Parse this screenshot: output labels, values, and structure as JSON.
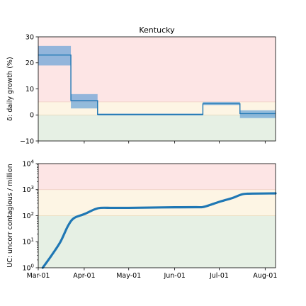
{
  "chart_data": [
    {
      "type": "step",
      "title": "Kentucky",
      "ylabel": "δ: daily growth (%)",
      "ylim": [
        -10,
        30
      ],
      "yticks": [
        "30",
        "20",
        "10",
        "0",
        "−10"
      ],
      "ytick_values": [
        30,
        20,
        10,
        0,
        -10
      ],
      "xlim_days": [
        0,
        160
      ],
      "bands": [
        {
          "from": -10,
          "to": 0,
          "color": "#e6f0e4"
        },
        {
          "from": 0,
          "to": 5,
          "color": "#fdf5e4"
        },
        {
          "from": 5,
          "to": 30,
          "color": "#fde5e5"
        }
      ],
      "segments": [
        {
          "start": "2020-03-01",
          "end": "2020-03-23",
          "value": 23,
          "low": 19,
          "high": 26.5
        },
        {
          "start": "2020-03-23",
          "end": "2020-04-10",
          "value": 5.5,
          "low": 2.5,
          "high": 8
        },
        {
          "start": "2020-04-10",
          "end": "2020-06-20",
          "value": 0.2,
          "low": -0.2,
          "high": 0.5
        },
        {
          "start": "2020-06-20",
          "end": "2020-07-15",
          "value": 4.3,
          "low": 3.8,
          "high": 5
        },
        {
          "start": "2020-07-15",
          "end": "2020-08-08",
          "value": 0.5,
          "low": -1.2,
          "high": 1.8
        }
      ],
      "line_color": "#1f77b4",
      "band_fill": "#5b9bd5"
    },
    {
      "type": "line",
      "ylabel": "UC: uncorr contagious / million",
      "yscale": "log",
      "ylim": [
        1,
        10000
      ],
      "yticks": [
        {
          "base": "10",
          "exp": "4",
          "value": 10000
        },
        {
          "base": "10",
          "exp": "3",
          "value": 1000
        },
        {
          "base": "10",
          "exp": "2",
          "value": 100
        },
        {
          "base": "10",
          "exp": "1",
          "value": 10
        },
        {
          "base": "10",
          "exp": "0",
          "value": 1
        }
      ],
      "bands": [
        {
          "from": 1,
          "to": 100,
          "color": "#e6f0e4"
        },
        {
          "from": 100,
          "to": 1000,
          "color": "#fdf5e4"
        },
        {
          "from": 1000,
          "to": 10000,
          "color": "#fde5e5"
        }
      ],
      "series": [
        {
          "x": [
            "2020-03-04",
            "2020-03-10",
            "2020-03-16",
            "2020-03-21",
            "2020-03-25",
            "2020-04-01",
            "2020-04-08",
            "2020-04-12",
            "2020-04-20",
            "2020-05-01",
            "2020-05-15",
            "2020-06-01",
            "2020-06-15",
            "2020-06-20",
            "2020-06-25",
            "2020-07-01",
            "2020-07-10",
            "2020-07-15",
            "2020-07-20",
            "2020-08-08"
          ],
          "y": [
            1,
            3,
            10,
            40,
            80,
            115,
            175,
            200,
            200,
            200,
            205,
            210,
            212,
            215,
            260,
            340,
            480,
            620,
            700,
            720
          ]
        }
      ],
      "line_color": "#1f77b4"
    }
  ],
  "xaxis": {
    "tick_labels": [
      "Mar-01",
      "Apr-01",
      "May-01",
      "Jun-01",
      "Jul-01",
      "Aug-01"
    ],
    "tick_dates": [
      "2020-03-01",
      "2020-04-01",
      "2020-05-01",
      "2020-06-01",
      "2020-07-01",
      "2020-08-01"
    ],
    "start": "2020-03-01",
    "end": "2020-08-08"
  }
}
